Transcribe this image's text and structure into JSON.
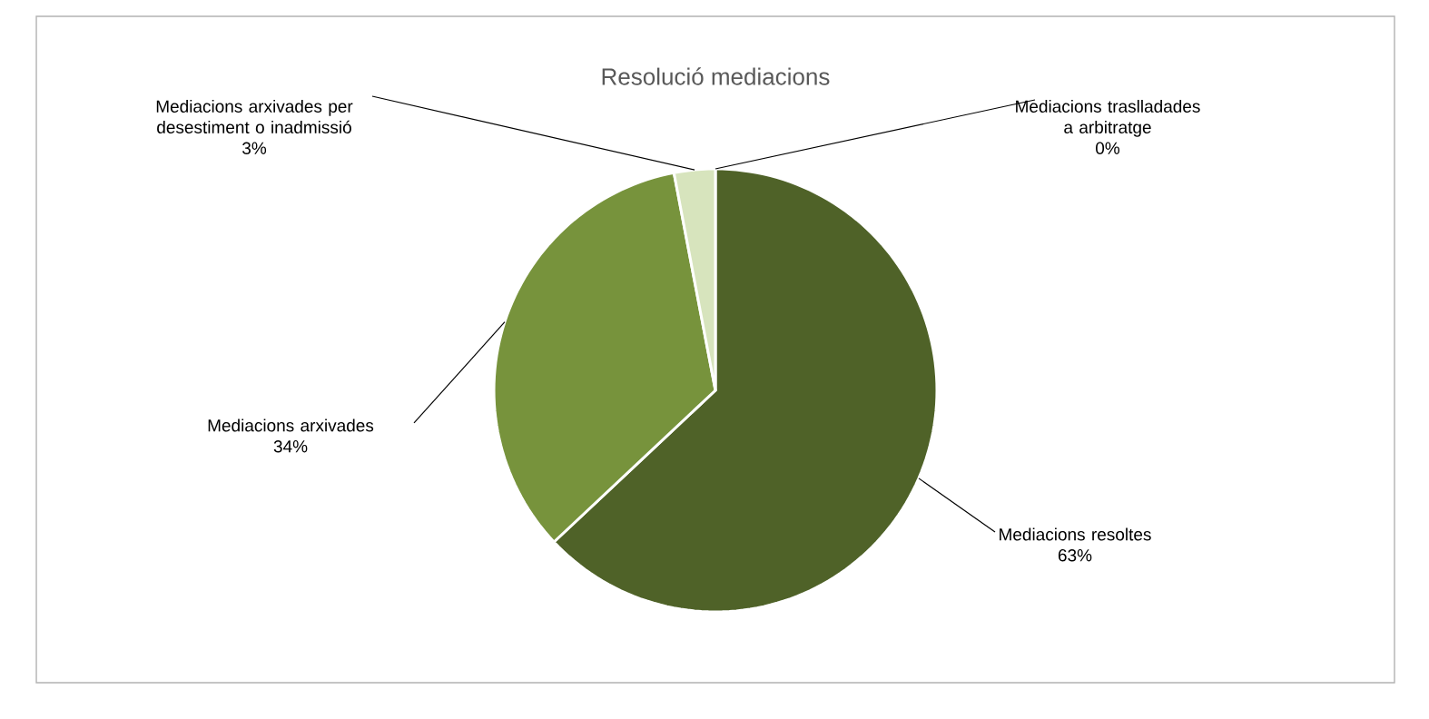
{
  "chart_data": {
    "type": "pie",
    "title": "Resolució mediacions",
    "categories": [
      "Mediacions resoltes",
      "Mediacions arxivades",
      "Mediacions arxivades per desestiment o inadmissió",
      "Mediacions traslladades a arbitratge"
    ],
    "values": [
      63,
      34,
      3,
      0
    ],
    "value_labels": [
      "63%",
      "34%",
      "3%",
      "0%"
    ],
    "colors": [
      "#4f6228",
      "#77933c",
      "#d7e4bd",
      "#c3d69b"
    ]
  }
}
